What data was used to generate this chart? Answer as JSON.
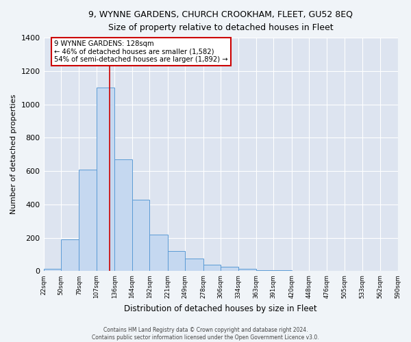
{
  "title": "9, WYNNE GARDENS, CHURCH CROOKHAM, FLEET, GU52 8EQ",
  "subtitle": "Size of property relative to detached houses in Fleet",
  "xlabel": "Distribution of detached houses by size in Fleet",
  "ylabel": "Number of detached properties",
  "bar_color": "#c5d8f0",
  "bar_edge_color": "#5b9bd5",
  "bg_color": "#dde4f0",
  "grid_color": "#ffffff",
  "annotation_box_edge": "#cc0000",
  "annotation_line1": "9 WYNNE GARDENS: 128sqm",
  "annotation_line2": "← 46% of detached houses are smaller (1,582)",
  "annotation_line3": "54% of semi-detached houses are larger (1,892) →",
  "red_line_x": 128,
  "ylim": [
    0,
    1400
  ],
  "yticks": [
    0,
    200,
    400,
    600,
    800,
    1000,
    1200,
    1400
  ],
  "bin_edges": [
    22,
    50,
    79,
    107,
    136,
    164,
    192,
    221,
    249,
    278,
    306,
    334,
    363,
    391,
    420,
    448,
    476,
    505,
    533,
    562,
    590
  ],
  "bar_heights": [
    15,
    190,
    610,
    1100,
    670,
    430,
    220,
    120,
    75,
    40,
    25,
    15,
    5,
    5,
    3,
    3,
    2,
    2,
    1,
    2
  ],
  "footer_line1": "Contains HM Land Registry data © Crown copyright and database right 2024.",
  "footer_line2": "Contains public sector information licensed under the Open Government Licence v3.0."
}
